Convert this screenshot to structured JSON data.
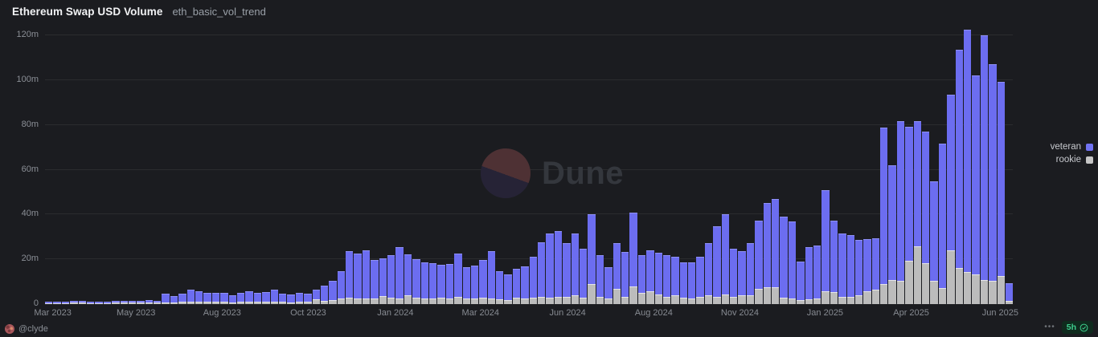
{
  "header": {
    "title": "Ethereum Swap USD Volume",
    "query_name": "eth_basic_vol_trend"
  },
  "legend": {
    "items": [
      {
        "label": "veteran",
        "color": "#7173f3"
      },
      {
        "label": "rookie",
        "color": "#c6c6c6"
      }
    ]
  },
  "watermark": {
    "text": "Dune"
  },
  "footer": {
    "author_handle": "@clyde",
    "menu_dots": "•••",
    "updated_badge": {
      "text": "5h",
      "icon": "check-circle-icon"
    }
  },
  "colors": {
    "background": "#1b1c20",
    "veteran_bar": "#6c6df0",
    "rookie_bar": "#bcbcbc",
    "axis_text": "#8b8f96",
    "badge_green": "#3ecf8e",
    "badge_bg": "#0f2b1e"
  },
  "chart_data": {
    "type": "bar",
    "stacked": true,
    "title": "Ethereum Swap USD Volume",
    "xlabel": "",
    "ylabel": "",
    "unit": "USD, millions (m)",
    "granularity": "weekly",
    "ylim": [
      0,
      120
    ],
    "grid": true,
    "legend_position": "right",
    "y_ticks": [
      0,
      20,
      40,
      60,
      80,
      100,
      120
    ],
    "y_tick_labels": [
      "0",
      "20m",
      "40m",
      "60m",
      "80m",
      "100m",
      "120m"
    ],
    "x_ticks": [
      {
        "label": "Mar 2023",
        "pos_pct": 0.8
      },
      {
        "label": "May 2023",
        "pos_pct": 9.4
      },
      {
        "label": "Aug 2023",
        "pos_pct": 18.3
      },
      {
        "label": "Oct 2023",
        "pos_pct": 27.2
      },
      {
        "label": "Jan 2024",
        "pos_pct": 36.2
      },
      {
        "label": "Mar 2024",
        "pos_pct": 45.0
      },
      {
        "label": "Jun 2024",
        "pos_pct": 54.0
      },
      {
        "label": "Aug 2024",
        "pos_pct": 62.9
      },
      {
        "label": "Nov 2024",
        "pos_pct": 71.8
      },
      {
        "label": "Jan 2025",
        "pos_pct": 80.6
      },
      {
        "label": "Apr 2025",
        "pos_pct": 89.5
      },
      {
        "label": "Jun 2025",
        "pos_pct": 98.7
      }
    ],
    "stack_order": [
      "rookie",
      "veteran"
    ],
    "series": [
      {
        "name": "rookie",
        "color": "#bcbcbc",
        "values": [
          0.05,
          0.05,
          0.08,
          0.1,
          0.1,
          0.08,
          0.05,
          0.08,
          0.1,
          0.1,
          0.1,
          0.15,
          0.2,
          0.15,
          0.5,
          0.4,
          0.6,
          0.8,
          0.7,
          0.6,
          0.6,
          0.6,
          0.5,
          0.6,
          0.7,
          0.6,
          0.7,
          0.8,
          0.6,
          0.5,
          0.6,
          0.6,
          1.8,
          1.2,
          1.3,
          2.0,
          2.5,
          2.2,
          2.0,
          2.0,
          3.1,
          2.5,
          2.0,
          3.7,
          2.5,
          2.2,
          2.0,
          2.5,
          2.0,
          3.0,
          2.0,
          2.2,
          2.5,
          2.0,
          1.8,
          1.5,
          2.5,
          2.0,
          2.5,
          3.0,
          2.5,
          3.0,
          3.0,
          3.5,
          2.5,
          8.5,
          3.0,
          2.0,
          6.5,
          3.0,
          7.5,
          4.5,
          5.5,
          4.0,
          3.0,
          3.5,
          2.5,
          2.0,
          3.0,
          3.5,
          3.0,
          4.0,
          3.0,
          3.5,
          3.5,
          6.5,
          7.3,
          7.3,
          2.5,
          2.0,
          1.5,
          1.8,
          2.0,
          5.5,
          5.1,
          3.0,
          3.0,
          3.5,
          5.5,
          6.0,
          8.5,
          10.3,
          10.0,
          18.9,
          25.5,
          18.1,
          9.9,
          6.9,
          23.7,
          15.8,
          13.9,
          12.9,
          10.3,
          10.0,
          12.1,
          1.0
        ]
      },
      {
        "name": "veteran",
        "color": "#6c6df0",
        "values": [
          0.1,
          0.15,
          0.17,
          0.2,
          0.4,
          0.22,
          0.15,
          0.17,
          0.2,
          0.25,
          0.3,
          0.45,
          0.7,
          0.45,
          3.3,
          2.5,
          3.3,
          5.1,
          4.3,
          3.7,
          3.7,
          3.7,
          2.8,
          3.7,
          4.3,
          3.7,
          4.0,
          4.8,
          3.3,
          3.0,
          3.7,
          3.2,
          3.8,
          6.5,
          8.4,
          12.1,
          20.5,
          19.8,
          21.2,
          16.9,
          16.5,
          18.6,
          22.6,
          17.8,
          16.8,
          15.9,
          15.5,
          14.4,
          15.2,
          19.0,
          13.7,
          14.4,
          16.5,
          20.8,
          12.1,
          11.2,
          12.7,
          14.3,
          18.0,
          23.8,
          28.5,
          29.0,
          23.7,
          27.5,
          21.5,
          30.9,
          18.0,
          13.7,
          20.0,
          19.7,
          32.5,
          16.5,
          17.8,
          18.3,
          18.2,
          17.0,
          15.4,
          15.9,
          17.5,
          22.9,
          31.0,
          35.6,
          21.1,
          19.6,
          23.2,
          30.1,
          37.3,
          39.0,
          35.9,
          34.2,
          16.9,
          23.1,
          23.4,
          44.6,
          31.5,
          28.0,
          27.0,
          24.5,
          22.8,
          22.6,
          69.8,
          51.2,
          70.9,
          59.6,
          55.4,
          58.3,
          44.1,
          64.1,
          69.3,
          97.2,
          108.1,
          88.6,
          109.2,
          96.5,
          86.4,
          7.5
        ]
      }
    ]
  }
}
